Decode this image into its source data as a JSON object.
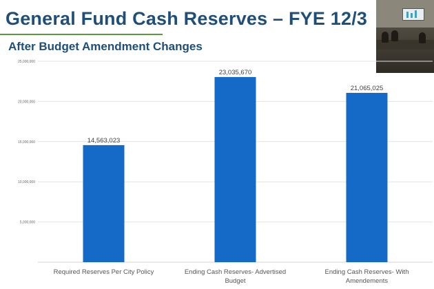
{
  "slide": {
    "title": "General Fund Cash Reserves – FYE 12/3",
    "subtitle": "After Budget Amendment Changes"
  },
  "colors": {
    "title": "#1f4e79",
    "accent_rule": "#5a9a3c",
    "bar": "#1569c7"
  },
  "video_overlay": {
    "icon": "webcam-feed"
  },
  "chart_data": {
    "type": "bar",
    "title": "",
    "xlabel": "",
    "ylabel": "",
    "ylim": [
      0,
      25000000
    ],
    "yticks": [
      {
        "value": 0,
        "label": ""
      },
      {
        "value": 5000000,
        "label": "5,000,000"
      },
      {
        "value": 10000000,
        "label": "10,000,000"
      },
      {
        "value": 15000000,
        "label": "15,000,000"
      },
      {
        "value": 20000000,
        "label": "20,000,000"
      },
      {
        "value": 25000000,
        "label": "25,000,000"
      }
    ],
    "grid": true,
    "categories": [
      [
        "Required Reserves Per City Policy"
      ],
      [
        "Ending Cash Reserves- Advertised",
        "Budget"
      ],
      [
        "Ending Cash Reserves- With",
        "Amendements"
      ]
    ],
    "values": [
      14563023,
      23035670,
      21065025
    ],
    "data_labels": [
      "14,563,023",
      "23,035,670",
      "21,065,025"
    ]
  }
}
